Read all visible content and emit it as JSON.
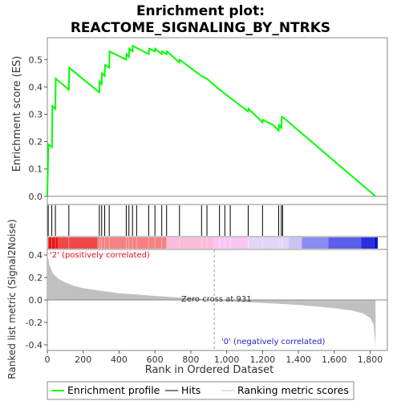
{
  "title_line1": "Enrichment plot:",
  "title_line2": "REACTOME_SIGNALING_BY_NTRKS",
  "colors": {
    "enrichment": "#00ff00",
    "hits": "#000000",
    "metric_fill": "#c0c0c0",
    "positive_text": "#e0141a",
    "negative_text": "#1d1dd0"
  },
  "chart_data": [
    {
      "type": "line",
      "name": "enrichment-profile",
      "ylabel": "Enrichment score (ES)",
      "xlim": [
        0,
        1896
      ],
      "ylim": [
        -0.03,
        0.58
      ],
      "yticks": [
        0.0,
        0.1,
        0.2,
        0.3,
        0.4,
        0.5
      ],
      "ytick_labels": [
        "0.0",
        "0.1",
        "0.2",
        "0.3",
        "0.4",
        "0.5"
      ],
      "grid": false,
      "points": [
        [
          0,
          0.0
        ],
        [
          6,
          0.19
        ],
        [
          26,
          0.18
        ],
        [
          28,
          0.33
        ],
        [
          45,
          0.32
        ],
        [
          47,
          0.43
        ],
        [
          120,
          0.39
        ],
        [
          122,
          0.47
        ],
        [
          290,
          0.38
        ],
        [
          292,
          0.42
        ],
        [
          303,
          0.41
        ],
        [
          305,
          0.45
        ],
        [
          320,
          0.44
        ],
        [
          322,
          0.48
        ],
        [
          345,
          0.47
        ],
        [
          347,
          0.53
        ],
        [
          440,
          0.5
        ],
        [
          442,
          0.52
        ],
        [
          455,
          0.51
        ],
        [
          457,
          0.54
        ],
        [
          475,
          0.53
        ],
        [
          477,
          0.55
        ],
        [
          565,
          0.52
        ],
        [
          567,
          0.54
        ],
        [
          600,
          0.53
        ],
        [
          602,
          0.54
        ],
        [
          638,
          0.52
        ],
        [
          640,
          0.53
        ],
        [
          665,
          0.52
        ],
        [
          667,
          0.53
        ],
        [
          735,
          0.49
        ],
        [
          737,
          0.5
        ],
        [
          860,
          0.44
        ],
        [
          890,
          0.43
        ],
        [
          960,
          0.39
        ],
        [
          1000,
          0.37
        ],
        [
          1020,
          0.36
        ],
        [
          1120,
          0.31
        ],
        [
          1122,
          0.32
        ],
        [
          1200,
          0.27
        ],
        [
          1202,
          0.28
        ],
        [
          1260,
          0.26
        ],
        [
          1290,
          0.24
        ],
        [
          1292,
          0.26
        ],
        [
          1305,
          0.25
        ],
        [
          1307,
          0.29
        ],
        [
          1312,
          0.29
        ],
        [
          1830,
          0.0
        ]
      ],
      "hits": [
        5,
        25,
        45,
        120,
        290,
        303,
        320,
        345,
        440,
        455,
        475,
        498,
        565,
        600,
        638,
        665,
        737,
        860,
        890,
        960,
        990,
        1020,
        1120,
        1200,
        1290,
        1305,
        1312
      ]
    },
    {
      "type": "heatmap",
      "name": "rank-color-bar",
      "colors_from_left": [
        "#e41313",
        "#f04848",
        "#f58181",
        "#fbbcdc",
        "#f9c6f2",
        "#e0d4f7",
        "#c9c4f5",
        "#8a8cf0",
        "#5b5ee8",
        "#2a2ee0",
        "#0c14c8"
      ]
    },
    {
      "type": "area",
      "name": "ranked-list-metric",
      "xlabel": "Rank in Ordered Dataset",
      "ylabel": "Ranked list metric (Signal2Noise)",
      "xlim": [
        0,
        1896
      ],
      "ylim": [
        -0.45,
        0.45
      ],
      "xticks": [
        0,
        200,
        400,
        600,
        800,
        1000,
        1200,
        1400,
        1600,
        1800
      ],
      "xtick_labels": [
        "0",
        "200",
        "400",
        "600",
        "800",
        "1,000",
        "1,200",
        "1,400",
        "1,600",
        "1,800"
      ],
      "yticks": [
        -0.4,
        -0.2,
        0.0,
        0.2,
        0.4
      ],
      "ytick_labels": [
        "-0.4",
        "-0.2",
        "0.0",
        "0.2",
        "0.4"
      ],
      "points": [
        [
          0,
          0.42
        ],
        [
          10,
          0.32
        ],
        [
          30,
          0.24
        ],
        [
          60,
          0.19
        ],
        [
          100,
          0.155
        ],
        [
          150,
          0.125
        ],
        [
          200,
          0.105
        ],
        [
          300,
          0.08
        ],
        [
          400,
          0.06
        ],
        [
          500,
          0.048
        ],
        [
          600,
          0.036
        ],
        [
          700,
          0.026
        ],
        [
          800,
          0.015
        ],
        [
          900,
          0.005
        ],
        [
          931,
          0.0
        ],
        [
          1000,
          -0.008
        ],
        [
          1100,
          -0.018
        ],
        [
          1200,
          -0.027
        ],
        [
          1300,
          -0.035
        ],
        [
          1400,
          -0.045
        ],
        [
          1500,
          -0.058
        ],
        [
          1600,
          -0.073
        ],
        [
          1700,
          -0.095
        ],
        [
          1760,
          -0.12
        ],
        [
          1800,
          -0.16
        ],
        [
          1820,
          -0.22
        ],
        [
          1830,
          -0.42
        ]
      ],
      "zero_cross_label": "Zero cross at 931",
      "zero_cross_rank": 931,
      "positive_label": "'2' (positively correlated)",
      "negative_label": "'0' (negatively correlated)"
    }
  ],
  "legend": {
    "items": [
      {
        "label": "Enrichment profile",
        "color": "#00ff00"
      },
      {
        "label": "Hits",
        "color": "#000000"
      },
      {
        "label": "Ranking metric scores",
        "color": "#c0c0c0"
      }
    ]
  }
}
